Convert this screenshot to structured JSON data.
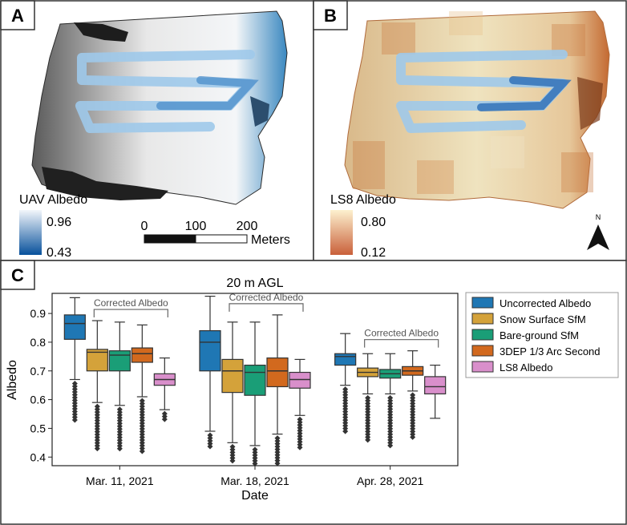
{
  "panels": {
    "a": {
      "label": "A",
      "colorbar_title": "UAV Albedo",
      "colorbar_max": "0.96",
      "colorbar_min": "0.43",
      "colors": [
        "#f2f6fb",
        "#08519c"
      ],
      "scalebar": {
        "ticks": [
          "0",
          "100",
          "200"
        ],
        "unit": "Meters"
      }
    },
    "b": {
      "label": "B",
      "colorbar_title": "LS8 Albedo",
      "colorbar_max": "0.80",
      "colorbar_min": "0.12",
      "colors": [
        "#fdf1cf",
        "#c9603a"
      ],
      "north_label": "N"
    },
    "c": {
      "label": "C"
    }
  },
  "chart_data": {
    "type": "box",
    "title": "20 m AGL",
    "xlabel": "Date",
    "ylabel": "Albedo",
    "ylim": [
      0.37,
      0.97
    ],
    "yticks": [
      "0.4",
      "0.5",
      "0.6",
      "0.7",
      "0.8",
      "0.9"
    ],
    "categories": [
      "Mar. 11, 2021",
      "Mar. 18, 2021",
      "Apr. 28, 2021"
    ],
    "bracket_label": "Corrected Albedo",
    "legend_position": "outside-right",
    "series": [
      {
        "name": "Uncorrected Albedo",
        "color": "#1f77b4",
        "boxes": [
          {
            "whislo": 0.67,
            "q1": 0.81,
            "med": 0.865,
            "q3": 0.895,
            "whishi": 0.955,
            "flier_min": 0.52
          },
          {
            "whislo": 0.49,
            "q1": 0.7,
            "med": 0.8,
            "q3": 0.84,
            "whishi": 0.96,
            "flier_min": 0.43
          },
          {
            "whislo": 0.65,
            "q1": 0.72,
            "med": 0.75,
            "q3": 0.76,
            "whishi": 0.83,
            "flier_min": 0.48
          }
        ]
      },
      {
        "name": "Snow Surface SfM",
        "color": "#d4a23a",
        "boxes": [
          {
            "whislo": 0.59,
            "q1": 0.7,
            "med": 0.765,
            "q3": 0.775,
            "whishi": 0.875,
            "flier_min": 0.42
          },
          {
            "whislo": 0.45,
            "q1": 0.625,
            "med": 0.7,
            "q3": 0.74,
            "whishi": 0.87,
            "flier_min": 0.38
          },
          {
            "whislo": 0.62,
            "q1": 0.68,
            "med": 0.695,
            "q3": 0.71,
            "whishi": 0.76,
            "flier_min": 0.45
          }
        ]
      },
      {
        "name": "Bare-ground SfM",
        "color": "#1a9e77",
        "boxes": [
          {
            "whislo": 0.58,
            "q1": 0.7,
            "med": 0.755,
            "q3": 0.77,
            "whishi": 0.87,
            "flier_min": 0.42
          },
          {
            "whislo": 0.44,
            "q1": 0.615,
            "med": 0.695,
            "q3": 0.72,
            "whishi": 0.87,
            "flier_min": 0.37
          },
          {
            "whislo": 0.62,
            "q1": 0.675,
            "med": 0.69,
            "q3": 0.705,
            "whishi": 0.76,
            "flier_min": 0.44
          }
        ]
      },
      {
        "name": "3DEP 1/3 Arc Second",
        "color": "#d2691e",
        "boxes": [
          {
            "whislo": 0.61,
            "q1": 0.73,
            "med": 0.76,
            "q3": 0.78,
            "whishi": 0.86,
            "flier_min": 0.42
          },
          {
            "whislo": 0.48,
            "q1": 0.645,
            "med": 0.7,
            "q3": 0.745,
            "whishi": 0.895,
            "flier_min": 0.37
          },
          {
            "whislo": 0.63,
            "q1": 0.685,
            "med": 0.7,
            "q3": 0.715,
            "whishi": 0.77,
            "flier_min": 0.46
          }
        ]
      },
      {
        "name": "LS8 Albedo",
        "color": "#d98fcb",
        "boxes": [
          {
            "whislo": 0.565,
            "q1": 0.65,
            "med": 0.67,
            "q3": 0.69,
            "whishi": 0.745,
            "flier_min": 0.525
          },
          {
            "whislo": 0.545,
            "q1": 0.64,
            "med": 0.67,
            "q3": 0.695,
            "whishi": 0.74,
            "flier_min": 0.43
          },
          {
            "whislo": 0.535,
            "q1": 0.62,
            "med": 0.645,
            "q3": 0.68,
            "whishi": 0.72,
            "flier_min": null
          }
        ]
      }
    ]
  }
}
